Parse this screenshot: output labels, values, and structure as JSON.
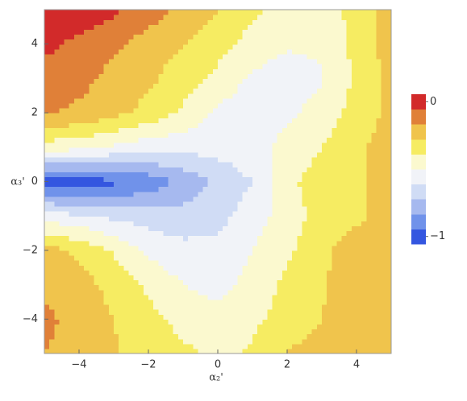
{
  "chart_data": {
    "type": "contour",
    "x": [
      -5,
      -4,
      -3,
      -2,
      -1,
      0,
      1,
      2,
      3,
      4,
      5
    ],
    "y": [
      -5,
      -4,
      -3,
      -2,
      -1,
      0,
      1,
      2,
      3,
      4,
      5
    ],
    "z": [
      [
        -0.2,
        -0.24,
        -0.29,
        -0.34,
        -0.38,
        -0.42,
        -0.39,
        -0.29,
        -0.27,
        -0.24,
        -0.24
      ],
      [
        -0.18,
        -0.23,
        -0.3,
        -0.37,
        -0.43,
        -0.46,
        -0.42,
        -0.36,
        -0.3,
        -0.24,
        -0.24
      ],
      [
        -0.22,
        -0.26,
        -0.33,
        -0.42,
        -0.5,
        -0.54,
        -0.46,
        -0.38,
        -0.31,
        -0.24,
        -0.24
      ],
      [
        -0.25,
        -0.32,
        -0.41,
        -0.52,
        -0.57,
        -0.57,
        -0.5,
        -0.42,
        -0.32,
        -0.25,
        -0.25
      ],
      [
        -0.55,
        -0.58,
        -0.62,
        -0.65,
        -0.66,
        -0.63,
        -0.55,
        -0.45,
        -0.36,
        -0.32,
        -0.25
      ],
      [
        -0.96,
        -0.95,
        -0.92,
        -0.87,
        -0.77,
        -0.68,
        -0.6,
        -0.42,
        -0.36,
        -0.32,
        -0.26
      ],
      [
        -0.45,
        -0.47,
        -0.52,
        -0.56,
        -0.57,
        -0.56,
        -0.53,
        -0.47,
        -0.4,
        -0.32,
        -0.25
      ],
      [
        -0.19,
        -0.22,
        -0.27,
        -0.33,
        -0.42,
        -0.52,
        -0.56,
        -0.52,
        -0.46,
        -0.36,
        -0.27
      ],
      [
        -0.15,
        -0.17,
        -0.23,
        -0.28,
        -0.35,
        -0.43,
        -0.52,
        -0.55,
        -0.51,
        -0.38,
        -0.27
      ],
      [
        -0.07,
        -0.13,
        -0.18,
        -0.25,
        -0.3,
        -0.36,
        -0.44,
        -0.49,
        -0.48,
        -0.37,
        -0.25
      ],
      [
        0,
        -0.02,
        -0.08,
        -0.15,
        -0.22,
        -0.3,
        -0.38,
        -0.45,
        -0.48,
        -0.35,
        -0.25
      ]
    ],
    "levels": [
      -0.9,
      -0.8,
      -0.7,
      -0.6,
      -0.5,
      -0.4,
      -0.3,
      -0.2,
      -0.1
    ],
    "colors": [
      "#3456e0",
      "#7092ea",
      "#a6b9ef",
      "#d0dcf5",
      "#f1f3f8",
      "#fbf9cf",
      "#f6ec62",
      "#f0c44c",
      "#e08038",
      "#d22a2a"
    ],
    "xlim": [
      -5,
      5
    ],
    "ylim": [
      -5,
      5
    ],
    "xticks": [
      {
        "value": -4,
        "label": "−4"
      },
      {
        "value": -2,
        "label": "−2"
      },
      0,
      2,
      4
    ],
    "yticks": [
      {
        "value": -4,
        "label": "−4"
      },
      {
        "value": -2,
        "label": "−2"
      },
      0,
      2,
      4
    ],
    "x_label": "α₂'",
    "y_label": "α₃'",
    "clim": [
      -1,
      0
    ],
    "colorbar_ticks": [
      {
        "value": 0,
        "label": "0"
      },
      {
        "value": -1,
        "label": "−1"
      }
    ]
  }
}
